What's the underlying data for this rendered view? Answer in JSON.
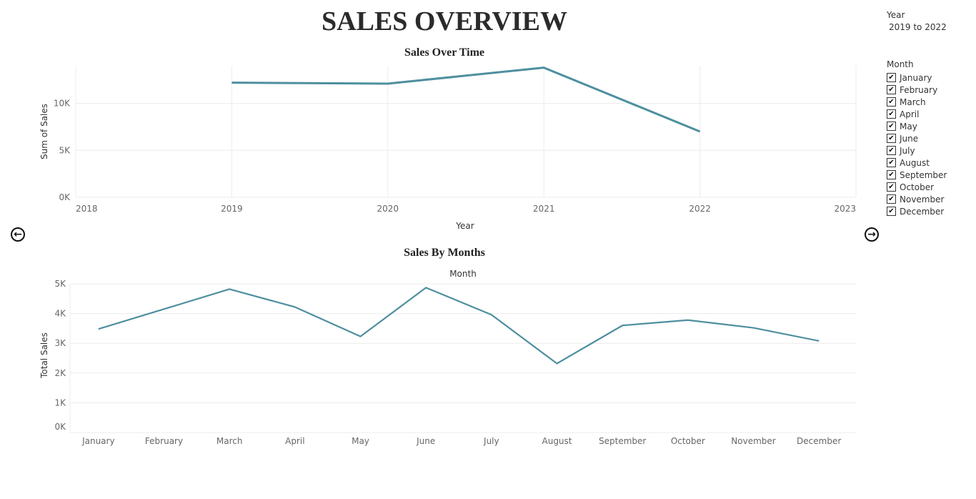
{
  "dashboard": {
    "title": "SALES OVERVIEW"
  },
  "filters": {
    "year": {
      "title": "Year",
      "value": "2019 to 2022"
    },
    "month": {
      "title": "Month",
      "items": [
        {
          "label": "January",
          "checked": true
        },
        {
          "label": "February",
          "checked": true
        },
        {
          "label": "March",
          "checked": true
        },
        {
          "label": "April",
          "checked": true
        },
        {
          "label": "May",
          "checked": true
        },
        {
          "label": "June",
          "checked": true
        },
        {
          "label": "July",
          "checked": true
        },
        {
          "label": "August",
          "checked": true
        },
        {
          "label": "September",
          "checked": true
        },
        {
          "label": "October",
          "checked": true
        },
        {
          "label": "November",
          "checked": true
        },
        {
          "label": "December",
          "checked": true
        }
      ]
    }
  },
  "nav": {
    "prev_icon": "arrow-left-circle-icon",
    "next_icon": "arrow-right-circle-icon"
  },
  "chart_data": [
    {
      "type": "line",
      "title": "Sales Over Time",
      "xlabel": "Year",
      "ylabel": "Sum of Sales",
      "x_ticks": [
        "2018",
        "2019",
        "2020",
        "2021",
        "2022",
        "2023"
      ],
      "y_ticks": [
        "0K",
        "5K",
        "10K"
      ],
      "xlim": [
        2018,
        2023
      ],
      "ylim": [
        0,
        14000
      ],
      "grid": true,
      "color": "#4e8f9f",
      "x": [
        2019,
        2020,
        2021,
        2022
      ],
      "series": [
        {
          "values": [
            12200,
            12100,
            13800,
            7000
          ]
        }
      ]
    },
    {
      "type": "line",
      "title": "Sales By Months",
      "xlabel_top": "Month",
      "ylabel": "Total  Sales",
      "categories": [
        "January",
        "February",
        "March",
        "April",
        "May",
        "June",
        "July",
        "August",
        "September",
        "October",
        "November",
        "December"
      ],
      "y_ticks": [
        "0K",
        "1K",
        "2K",
        "3K",
        "4K",
        "5K"
      ],
      "ylim": [
        0,
        5000
      ],
      "grid": true,
      "color": "#4e8f9f",
      "series": [
        {
          "values": [
            3480,
            4150,
            4820,
            4220,
            3230,
            4870,
            3960,
            2320,
            3600,
            3780,
            3520,
            3080
          ]
        }
      ]
    }
  ]
}
